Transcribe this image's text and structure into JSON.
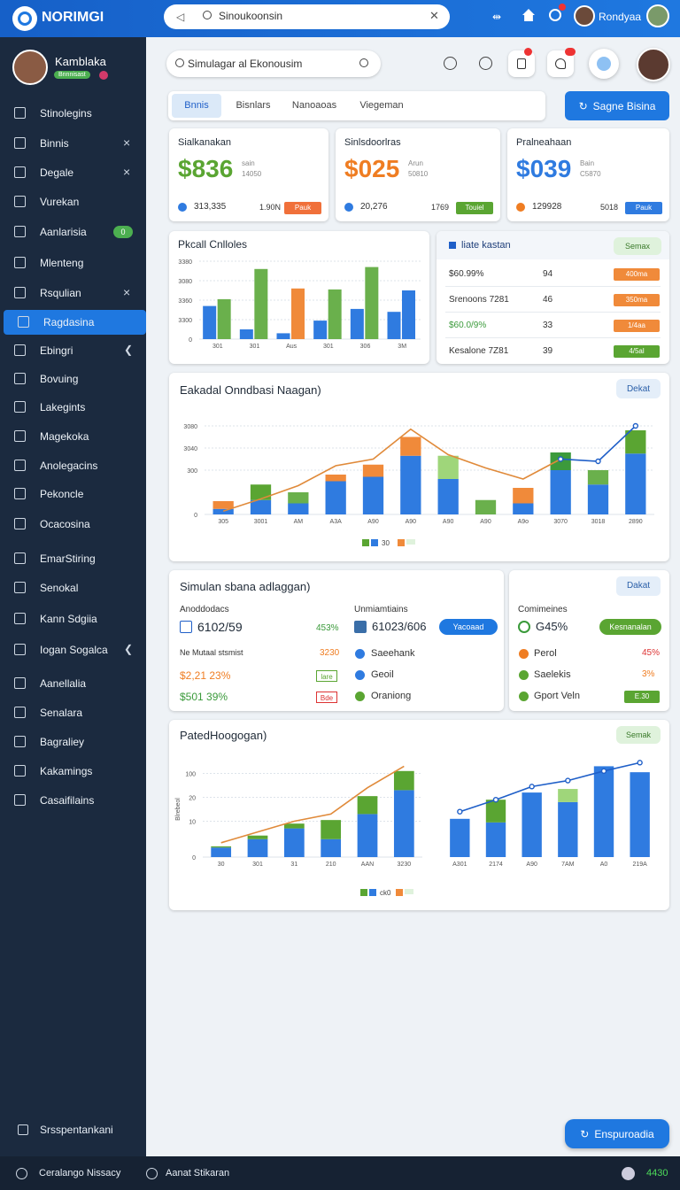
{
  "topbar": {
    "brand": "NORIMGI",
    "search": "Sinoukoonsin",
    "user": "Rondyaa"
  },
  "sidebar": {
    "user": "Kamblaka",
    "badge": "Bnnnisast",
    "items": [
      {
        "label": "Stinolegins"
      },
      {
        "label": "Binnis"
      },
      {
        "label": "Degale"
      },
      {
        "label": "Vurekan"
      },
      {
        "label": "Aanlarisia",
        "badge": "0"
      },
      {
        "label": "Mlenteng"
      },
      {
        "label": "Rsqulian"
      },
      {
        "label": "Ragdasina",
        "active": true
      },
      {
        "label": "Ebingri"
      },
      {
        "label": "Bovuing"
      },
      {
        "label": "Lakegints"
      },
      {
        "label": "Magekoka"
      },
      {
        "label": "Anolegacins"
      },
      {
        "label": "Pekoncle"
      },
      {
        "label": "Ocacosina"
      },
      {
        "label": "EmarStiring"
      },
      {
        "label": "Senokal"
      },
      {
        "label": "Kann Sdgiia"
      },
      {
        "label": "Iogan Sogalca"
      },
      {
        "label": "Aanellalia"
      },
      {
        "label": "Senalara"
      },
      {
        "label": "Bagraliey"
      },
      {
        "label": "Kakamings"
      },
      {
        "label": "Casaifilains"
      }
    ],
    "footer": "Srsspentankani"
  },
  "toolbar": {
    "search": "Simulagar al Ekonousim",
    "tabs": [
      "Bnnis",
      "Bisnlars",
      "Nanoaoas",
      "Viegeman"
    ],
    "button": "Sagne Bisina"
  },
  "kpis": [
    {
      "title": "Sialkanakan",
      "value": "$836",
      "sub": [
        "sain",
        "14050"
      ],
      "stat": "313,335",
      "stat2": "1.90N",
      "tag": "Pauk",
      "color": "#5aa532",
      "dot": "#2f7be0",
      "tag_color": "#f0703a"
    },
    {
      "title": "Sinlsdoorlras",
      "value": "$025",
      "sub": [
        "Arun",
        "50810"
      ],
      "stat": "20,276",
      "stat2": "1769",
      "tag": "Touiel",
      "color": "#ef7d22",
      "dot": "#2f7be0",
      "tag_color": "#5aa532"
    },
    {
      "title": "Pralneahaan",
      "value": "$039",
      "sub": [
        "Bain",
        "C5870"
      ],
      "stat": "129928",
      "stat2": "5018",
      "tag": "Pauk",
      "color": "#2f7be0",
      "dot": "#ef7d22",
      "tag_color": "#2f7be0"
    }
  ],
  "table": {
    "title": "liate kastan",
    "button": "Semax",
    "rows": [
      [
        "$60.99%",
        "94",
        "400ma"
      ],
      [
        "Srenoons 7281",
        "46",
        "350ma"
      ],
      [
        "$60.0/9%",
        "33",
        "1/4aa"
      ],
      [
        "Kesalone 7Z81",
        "39",
        "4/5al"
      ]
    ],
    "tag_colors": [
      "#f08a3a",
      "#f08a3a",
      "#f08a3a",
      "#5aa532"
    ]
  },
  "charts": [
    {
      "type": "bar",
      "title": "Pkcall Cnlloles",
      "categories": [
        "301",
        "301",
        "Aus",
        "301",
        "306",
        "3M"
      ],
      "ylim": [
        0,
        4
      ],
      "yticks": [
        0,
        {
          "value": 1,
          "label": "3300"
        },
        {
          "value": 2,
          "label": "3360"
        },
        {
          "value": 3,
          "label": "3080"
        },
        {
          "value": 4,
          "label": "3380"
        }
      ],
      "grid": true,
      "stacked": false,
      "series": [
        {
          "type": "bar",
          "color": "#2f7be0",
          "values": [
            1.7,
            0.5,
            0.3,
            0.95,
            1.55,
            1.4
          ]
        },
        {
          "type": "bar",
          "colors": [
            "#6ab04c",
            "#6ab04c",
            "#f08a3a",
            "#6ab04c",
            "#6ab04c",
            "#2f7be0"
          ],
          "values": [
            2.05,
            3.6,
            2.6,
            2.55,
            3.7,
            2.5
          ]
        }
      ]
    },
    {
      "type": "bar",
      "title": "Eakadal Onndbasi Naagan)",
      "button": "Dekat",
      "legend": "30",
      "categories": [
        "305",
        "3001",
        "AM",
        "A3A",
        "A90",
        "A90",
        "A90",
        "A90",
        "A9o",
        "3070",
        "3018",
        "2890"
      ],
      "ylim": [
        0,
        4
      ],
      "yticks": [
        0,
        {
          "value": 2,
          "label": "300"
        },
        {
          "value": 3,
          "label": "3040"
        },
        {
          "value": 4,
          "label": "3080"
        }
      ],
      "grid": true,
      "stacked": true,
      "series": [
        {
          "type": "bar",
          "color": "#2f7be0",
          "values": [
            0.25,
            0.65,
            0.5,
            1.5,
            1.7,
            2.65,
            1.6,
            null,
            0.5,
            2.0,
            1.35,
            2.75
          ]
        },
        {
          "type": "bar",
          "colors": [
            "#f08a3a",
            "#5aa532",
            "#6ab04c",
            "#f08a3a",
            "#f08a3a",
            "#f08a3a",
            "#9fd67a",
            "#6ab04c",
            "#f08a3a",
            "#3c9a3c",
            "#6ab04c",
            "#5aa532"
          ],
          "values": [
            0.35,
            0.7,
            0.5,
            0.3,
            0.55,
            0.85,
            1.05,
            0.65,
            0.7,
            0.8,
            0.65,
            1.05
          ]
        },
        {
          "type": "line",
          "color": "#e08a3a",
          "values": [
            0.15,
            0.7,
            1.3,
            2.2,
            2.5,
            3.85,
            2.7,
            2.1,
            1.6,
            2.5,
            null,
            null
          ]
        },
        {
          "type": "line",
          "color": "#1f5fc8",
          "markers": true,
          "values": [
            null,
            null,
            null,
            null,
            null,
            null,
            null,
            null,
            null,
            2.5,
            2.4,
            4.0
          ]
        }
      ]
    },
    {
      "type": "bar",
      "ylabel": "Blrebeol",
      "legend": "ck0",
      "categories": [
        "30",
        "301",
        "31",
        "210",
        "AAN",
        "3230"
      ],
      "ylim": [
        0,
        4
      ],
      "yticks": [
        0,
        {
          "value": 1.5,
          "label": "10"
        },
        {
          "value": 2.5,
          "label": "20"
        },
        {
          "value": 3.5,
          "label": "100"
        }
      ],
      "grid": true,
      "stacked": true,
      "series": [
        {
          "type": "bar",
          "color": "#2f7be0",
          "values": [
            0.4,
            0.75,
            1.2,
            0.75,
            1.8,
            2.8
          ]
        },
        {
          "type": "bar",
          "color": "#5aa532",
          "values": [
            0.05,
            0.15,
            0.2,
            0.8,
            0.75,
            0.8
          ]
        },
        {
          "type": "line",
          "color": "#e08a3a",
          "values": [
            0.6,
            1.05,
            1.5,
            1.8,
            2.9,
            3.8
          ]
        }
      ]
    },
    {
      "type": "bar",
      "categories": [
        "A301",
        "2174",
        "A90",
        "7AM",
        "A0",
        "219A"
      ],
      "ylim": [
        0,
        4
      ],
      "yticks": [],
      "grid": true,
      "stacked": true,
      "series": [
        {
          "type": "bar",
          "color": "#2f7be0",
          "values": [
            1.6,
            1.45,
            2.7,
            2.3,
            3.8,
            3.55
          ]
        },
        {
          "type": "bar",
          "colors": [
            "#5aa532",
            "#5aa532",
            "#5aa532",
            "#9fd67a",
            "#5aa532",
            "#5aa532"
          ],
          "values": [
            0,
            0.95,
            0,
            0.55,
            0,
            0
          ]
        },
        {
          "type": "line",
          "color": "#1f5fc8",
          "markers": true,
          "values": [
            1.9,
            2.4,
            2.95,
            3.2,
            3.6,
            3.95
          ]
        }
      ]
    }
  ],
  "summary": {
    "title": "Simulan sbana adlaggan)",
    "button": "Dakat",
    "col1": {
      "label": "Anoddodacs",
      "value": "6102/59",
      "pct": "453%",
      "rows": [
        {
          "label": "Ne Mutaal stsmist",
          "value": "3230"
        },
        {
          "label": "$2,21 23%",
          "tag": "lare"
        },
        {
          "label": "$501 39%",
          "tag": "Bde"
        }
      ]
    },
    "col2": {
      "label": "Unmiamtiains",
      "value": "61023/606",
      "button": "Yacoaad",
      "items": [
        "Saeehank",
        "Geoil",
        "Oraniong"
      ]
    },
    "col3": {
      "label": "Comimeines",
      "value": "G45%",
      "button": "Kesnanalan",
      "rows": [
        {
          "label": "Perol",
          "value": "45%"
        },
        {
          "label": "Saelekis",
          "value": "3%"
        },
        {
          "label": "Gport Veln",
          "tag": "E.30"
        }
      ]
    }
  },
  "section4": {
    "title": "PatedHoogogan)",
    "button": "Semak"
  },
  "float_button": "Enspuroadia",
  "bottombar": {
    "left": "Ceralango Nissacy",
    "middle": "Aanat Stikaran",
    "right": "4430"
  }
}
